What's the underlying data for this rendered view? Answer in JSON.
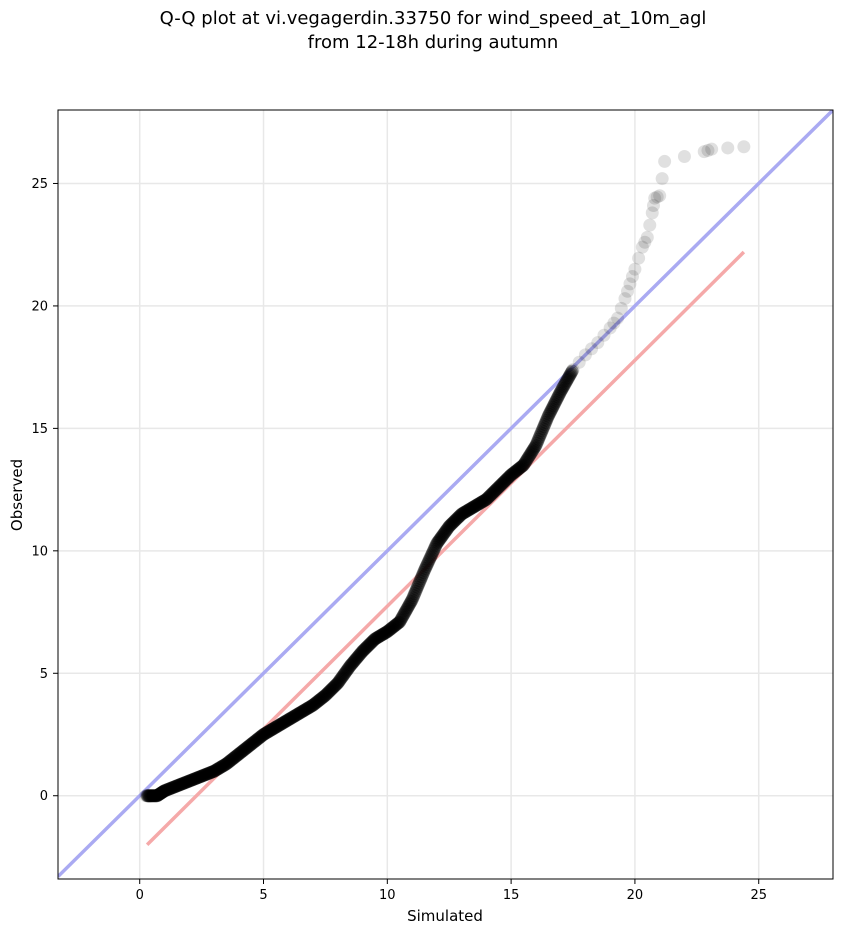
{
  "chart_data": {
    "type": "scatter",
    "title_line1": "Q-Q plot at vi.vegagerdin.33750 for wind_speed_at_10m_agl",
    "title_line2": "from 12-18h during autumn",
    "xlabel": "Simulated",
    "ylabel": "Observed",
    "xlim": [
      -3.3,
      28
    ],
    "ylim": [
      -3.4,
      28
    ],
    "xticks": [
      0,
      5,
      10,
      15,
      20,
      25
    ],
    "yticks": [
      0,
      5,
      10,
      15,
      20,
      25
    ],
    "xtick_labels": [
      "0",
      "5",
      "10",
      "15",
      "20",
      "25"
    ],
    "ytick_labels": [
      "0",
      "5",
      "10",
      "15",
      "20",
      "25"
    ],
    "grid": true,
    "quantile_points": {
      "x": [
        0.3,
        0.7,
        1.0,
        1.5,
        2.0,
        2.5,
        3.0,
        3.5,
        4.0,
        4.5,
        5.0,
        5.5,
        6.0,
        6.5,
        7.0,
        7.5,
        8.0,
        8.5,
        9.0,
        9.5,
        10.0,
        10.5,
        11.0,
        11.5,
        12.0,
        12.5,
        13.0,
        13.5,
        14.0,
        14.5,
        15.0,
        15.5,
        16.0,
        16.5,
        17.0,
        17.5,
        18.0,
        18.5,
        19.0,
        19.3,
        19.6,
        19.8,
        20.0,
        20.3,
        20.5,
        20.7,
        20.8,
        21.0,
        21.2,
        22.8,
        23.1,
        24.4
      ],
      "y": [
        0.0,
        0.0,
        0.2,
        0.4,
        0.6,
        0.8,
        1.0,
        1.3,
        1.7,
        2.1,
        2.5,
        2.8,
        3.1,
        3.4,
        3.7,
        4.1,
        4.6,
        5.3,
        5.9,
        6.4,
        6.7,
        7.1,
        8.0,
        9.2,
        10.3,
        11.0,
        11.5,
        11.8,
        12.1,
        12.6,
        13.1,
        13.5,
        14.3,
        15.5,
        16.5,
        17.4,
        18.0,
        18.5,
        19.1,
        19.5,
        20.3,
        20.9,
        21.5,
        22.4,
        22.8,
        23.8,
        24.4,
        24.5,
        25.9,
        26.3,
        26.4,
        26.5
      ]
    },
    "identity_line": {
      "color": "#aaaaf2",
      "x": [
        -3.3,
        28
      ],
      "y": [
        -3.3,
        28
      ]
    },
    "fit_line": {
      "color": "#f5a9a9",
      "x": [
        0.3,
        24.4
      ],
      "y": [
        -2.0,
        22.2
      ]
    },
    "point_color": "#000000"
  }
}
